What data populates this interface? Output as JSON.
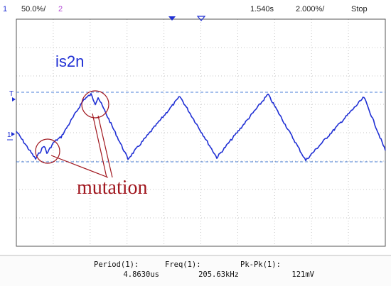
{
  "topbar": {
    "channel_number": "1",
    "volts_per_div": "50.0%/",
    "channel_2": "2",
    "time_offset": "1.540s",
    "time_per_div": "2.000%/",
    "run_state": "Stop"
  },
  "markers": {
    "trigger_level": "T",
    "ground_ref": "1"
  },
  "waveform": {
    "label": "is2n",
    "annotation": "mutation",
    "trace_color": "#1f2fd4",
    "annotation_color": "#a0161e"
  },
  "measurements": [
    {
      "label": "Period(1):",
      "value": "4.8630us"
    },
    {
      "label": "Freq(1):",
      "value": "205.63kHz"
    },
    {
      "label": "Pk-Pk(1):",
      "value": "121mV"
    }
  ]
}
